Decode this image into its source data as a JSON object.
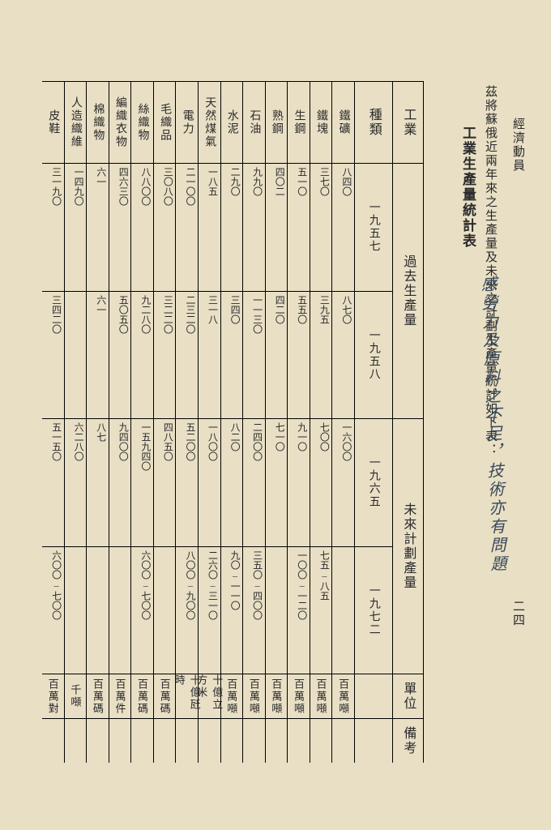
{
  "running_head": "經濟動員",
  "page_number": "二四",
  "intro": "茲將蘇俄近兩年來之生產量及未來之計劃生產量統計如下表：",
  "table_title": "工業生產量統計表",
  "handwriting": "感勞力及原料之不足，技術亦有問題",
  "headers": {
    "industry": "工業",
    "kind": "種類",
    "section_past": "過去生產量",
    "section_future": "未來計劃產量",
    "unit": "單位",
    "note": "備考"
  },
  "years": {
    "y1": "一九五七",
    "y2": "一九五八",
    "y3": "一九六五",
    "y4": "一九七二"
  },
  "items": [
    {
      "name": "鐵礦",
      "unit": "百萬噸",
      "v1": "八四〇",
      "v2": "八七〇",
      "v3": "一六〇〇",
      "v4": "—"
    },
    {
      "name": "鐵塊",
      "unit": "百萬噸",
      "v1": "三七〇",
      "v2": "三九五",
      "v3": "七〇〇",
      "v4": "七五–八五"
    },
    {
      "name": "生鋼",
      "unit": "百萬噸",
      "v1": "五一〇",
      "v2": "五五〇",
      "v3": "九一〇",
      "v4": "一〇〇–一二〇"
    },
    {
      "name": "熟鋼",
      "unit": "百萬噸",
      "v1": "四〇二",
      "v2": "四二〇",
      "v3": "七一〇",
      "v4": "—"
    },
    {
      "name": "石油",
      "unit": "百萬噸",
      "v1": "九九〇",
      "v2": "一一三〇",
      "v3": "二四〇〇",
      "v4": "三五〇–四〇〇"
    },
    {
      "name": "水泥",
      "unit": "百萬噸",
      "v1": "二九〇",
      "v2": "三四〇",
      "v3": "八二〇",
      "v4": "九〇–一一〇"
    },
    {
      "name": "天然煤氣",
      "unit": "十億立方米",
      "v1": "一八五",
      "v2": "三一八",
      "v3": "一八〇〇",
      "v4": "二六〇–三一〇"
    },
    {
      "name": "電力",
      "unit": "十億瓩時",
      "v1": "二一〇〇",
      "v2": "二三二〇",
      "v3": "五二〇〇",
      "v4": "八〇〇–九〇〇"
    },
    {
      "name": "毛織品",
      "unit": "百萬碼",
      "v1": "三〇八〇",
      "v2": "三二二〇",
      "v3": "四八五〇",
      "v4": "—"
    },
    {
      "name": "絲織物",
      "unit": "百萬碼",
      "v1": "八八〇〇",
      "v2": "九二八〇",
      "v3": "一五九四〇",
      "v4": "六〇〇–七〇〇"
    },
    {
      "name": "編織衣物",
      "unit": "百萬件",
      "v1": "四六三〇",
      "v2": "五〇五〇",
      "v3": "九四〇〇",
      "v4": "—"
    },
    {
      "name": "棉織物",
      "unit": "百萬碼",
      "v1": "六一",
      "v2": "六一",
      "v3": "八七",
      "v4": "—"
    },
    {
      "name": "人造織維",
      "unit": "千噸",
      "v1": "一四九〇",
      "v2": "—",
      "v3": "六二八〇",
      "v4": "—"
    },
    {
      "name": "皮鞋",
      "unit": "百萬對",
      "v1": "三一九〇",
      "v2": "三四二〇",
      "v3": "五一五〇",
      "v4": "六〇〇–七〇〇"
    }
  ]
}
